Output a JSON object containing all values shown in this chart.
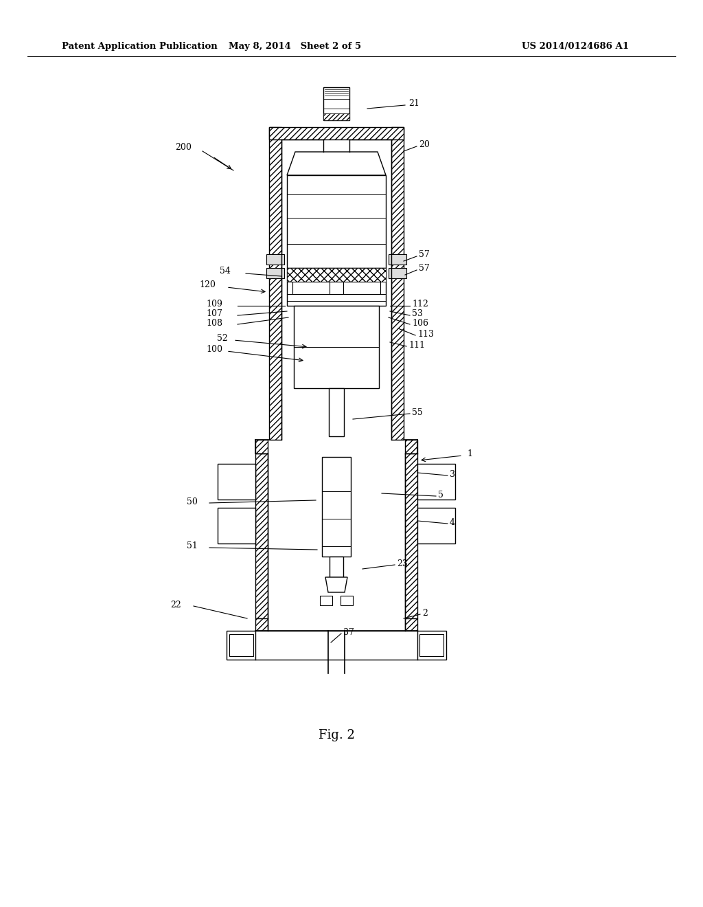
{
  "title_left": "Patent Application Publication",
  "title_center": "May 8, 2014   Sheet 2 of 5",
  "title_right": "US 2014/0124686 A1",
  "fig_label": "Fig. 2",
  "bg_color": "#ffffff",
  "line_color": "#000000"
}
